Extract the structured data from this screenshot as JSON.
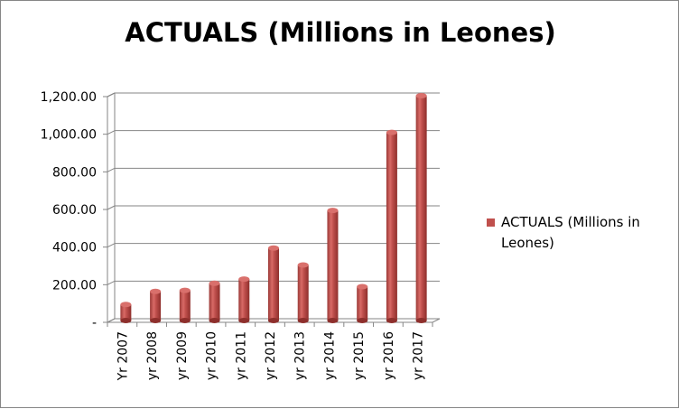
{
  "chart_data": {
    "type": "bar",
    "title": "ACTUALS (Millions in Leones)",
    "categories": [
      "Yr 2007",
      "yr 2008",
      "yr 2009",
      "yr 2010",
      "yr 2011",
      "yr 2012",
      "yr 2013",
      "yr 2014",
      "yr 2015",
      "yr 2016",
      "yr 2017"
    ],
    "series": [
      {
        "name": "ACTUALS (Millions in Leones)",
        "values": [
          85,
          155,
          160,
          198,
          220,
          385,
          295,
          585,
          180,
          1000,
          1195
        ],
        "color": "#c0504d"
      }
    ],
    "ylim": [
      0,
      1200
    ],
    "yticks": [
      0,
      200,
      400,
      600,
      800,
      1000,
      1200
    ],
    "ytick_labels": [
      "-",
      "200.00",
      "400.00",
      "600.00",
      "800.00",
      "1,000.00",
      "1,200.00"
    ],
    "grid": true,
    "legend_position": "right"
  }
}
